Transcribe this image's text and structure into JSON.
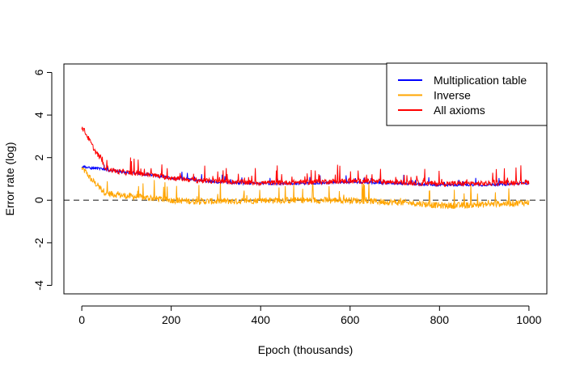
{
  "chart_data": {
    "type": "line",
    "xlabel": "Epoch (thousands)",
    "ylabel": "Error rate (log)",
    "xlim": [
      -40,
      1040
    ],
    "ylim": [
      -4.4,
      6.4
    ],
    "xticks": [
      0,
      200,
      400,
      600,
      800,
      1000
    ],
    "yticks": [
      -4,
      -2,
      0,
      2,
      4,
      6
    ],
    "reference_line": {
      "y": 0,
      "style": "dashed",
      "color": "#555555"
    },
    "legend_position": "top-right",
    "series": [
      {
        "name": "Multiplication table",
        "color": "#0000ff",
        "x": [
          0,
          10,
          20,
          30,
          40,
          50,
          60,
          80,
          100,
          150,
          200,
          250,
          300,
          350,
          400,
          450,
          500,
          550,
          600,
          650,
          700,
          750,
          800,
          850,
          900,
          950,
          1000
        ],
        "y": [
          1.6,
          1.55,
          1.5,
          1.5,
          1.48,
          1.45,
          1.4,
          1.35,
          1.3,
          1.2,
          1.05,
          0.95,
          0.85,
          0.8,
          0.78,
          0.78,
          0.8,
          0.82,
          0.85,
          0.82,
          0.8,
          0.75,
          0.72,
          0.72,
          0.72,
          0.75,
          0.8
        ],
        "noise": 0.06
      },
      {
        "name": "Inverse",
        "color": "#ffa500",
        "x": [
          0,
          10,
          20,
          30,
          40,
          50,
          60,
          80,
          100,
          150,
          200,
          250,
          300,
          350,
          400,
          450,
          500,
          550,
          600,
          650,
          700,
          750,
          800,
          850,
          900,
          950,
          1000
        ],
        "y": [
          1.5,
          1.3,
          1.0,
          0.8,
          0.6,
          0.4,
          0.3,
          0.25,
          0.2,
          0.1,
          0.0,
          -0.05,
          -0.05,
          -0.05,
          0.0,
          0.0,
          0.0,
          0.0,
          0.0,
          -0.05,
          -0.1,
          -0.15,
          -0.25,
          -0.25,
          -0.2,
          -0.15,
          -0.1
        ],
        "noise": 0.15
      },
      {
        "name": "All axioms",
        "color": "#ff0000",
        "x": [
          0,
          5,
          10,
          20,
          30,
          40,
          50,
          60,
          80,
          100,
          150,
          200,
          250,
          300,
          350,
          400,
          450,
          500,
          550,
          600,
          650,
          700,
          750,
          800,
          850,
          900,
          950,
          1000
        ],
        "y": [
          3.4,
          3.3,
          3.1,
          2.7,
          2.3,
          2.0,
          1.6,
          1.45,
          1.35,
          1.3,
          1.2,
          1.05,
          0.95,
          0.88,
          0.85,
          0.82,
          0.82,
          0.85,
          0.88,
          0.9,
          0.88,
          0.85,
          0.8,
          0.78,
          0.78,
          0.78,
          0.82,
          0.85
        ],
        "noise": 0.12
      }
    ]
  }
}
